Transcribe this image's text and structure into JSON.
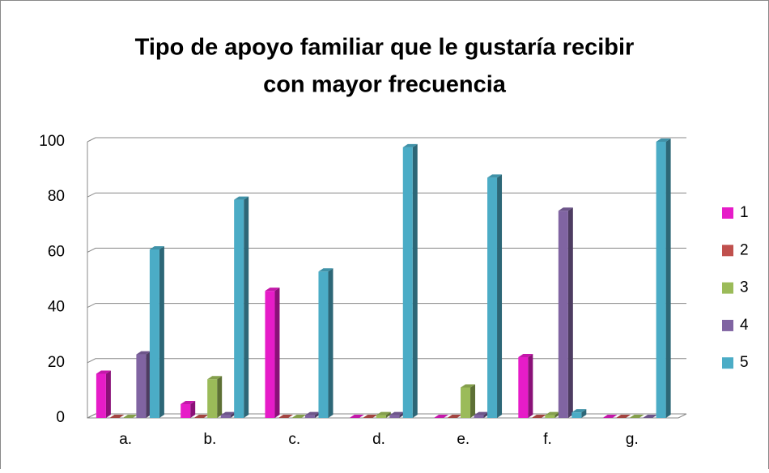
{
  "chart_data": {
    "type": "bar3d",
    "title": [
      "Tipo de apoyo familiar que le gustaría recibir",
      "con mayor frecuencia"
    ],
    "categories": [
      "a.",
      "b.",
      "c.",
      "d.",
      "e.",
      "f.",
      "g."
    ],
    "series": [
      {
        "name": "1",
        "color": "#e61cc8",
        "values": [
          16,
          5,
          46,
          0,
          0,
          22,
          0
        ]
      },
      {
        "name": "2",
        "color": "#c0504d",
        "values": [
          0,
          0,
          0,
          0,
          0,
          0,
          0
        ]
      },
      {
        "name": "3",
        "color": "#9bbb59",
        "values": [
          0,
          14,
          0,
          1,
          11,
          1,
          0
        ]
      },
      {
        "name": "4",
        "color": "#8064a2",
        "values": [
          23,
          1,
          1,
          1,
          1,
          75,
          0
        ]
      },
      {
        "name": "5",
        "color": "#4bacc6",
        "values": [
          61,
          79,
          53,
          98,
          87,
          2,
          100
        ]
      }
    ],
    "ylim": [
      0,
      100
    ],
    "yticks": [
      0,
      20,
      40,
      60,
      80,
      100
    ],
    "grid": true,
    "legend": "right"
  }
}
